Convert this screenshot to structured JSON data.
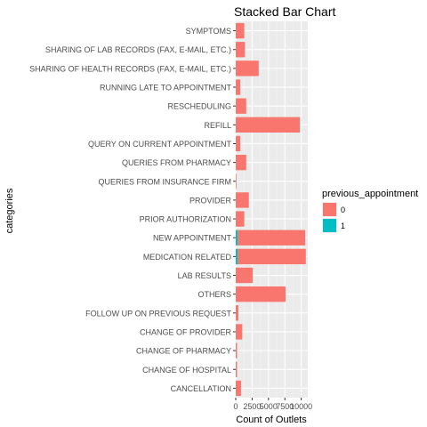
{
  "chart_data": {
    "type": "bar",
    "orientation": "horizontal",
    "stacked": true,
    "title": "Stacked Bar Chart",
    "xlabel": "Count of Outlets",
    "ylabel": "categories",
    "xlim": [
      0,
      11000
    ],
    "x_ticks": [
      0,
      2500,
      5000,
      7500,
      10000
    ],
    "categories": [
      "SYMPTOMS",
      "SHARING OF LAB RECORDS (FAX, E-MAIL, ETC.)",
      "SHARING OF HEALTH RECORDS (FAX, E-MAIL, ETC.)",
      "RUNNING LATE TO APPOINTMENT",
      "RESCHEDULING",
      "REFILL",
      "QUERY ON CURRENT APPOINTMENT",
      "QUERIES FROM PHARMACY",
      "QUERIES FROM INSURANCE FIRM",
      "PROVIDER",
      "PRIOR AUTHORIZATION",
      "NEW APPOINTMENT",
      "MEDICATION RELATED",
      "LAB RESULTS",
      "OTHERS",
      "FOLLOW UP ON PREVIOUS REQUEST",
      "CHANGE OF PROVIDER",
      "CHANGE OF PHARMACY",
      "CHANGE OF HOSPITAL",
      "CANCELLATION"
    ],
    "series": [
      {
        "name": "0",
        "color": "#F8766D",
        "values": [
          1300,
          1400,
          3500,
          700,
          1600,
          9800,
          700,
          1600,
          100,
          2000,
          1300,
          10300,
          10400,
          2600,
          7600,
          400,
          1000,
          200,
          200,
          800
        ]
      },
      {
        "name": "1",
        "color": "#00BFC4",
        "values": [
          0,
          0,
          0,
          0,
          0,
          0,
          0,
          0,
          0,
          0,
          0,
          300,
          300,
          0,
          0,
          0,
          0,
          0,
          0,
          0
        ]
      }
    ],
    "legend_title": "previous_appointment",
    "legend_position": "right",
    "grid": true
  }
}
